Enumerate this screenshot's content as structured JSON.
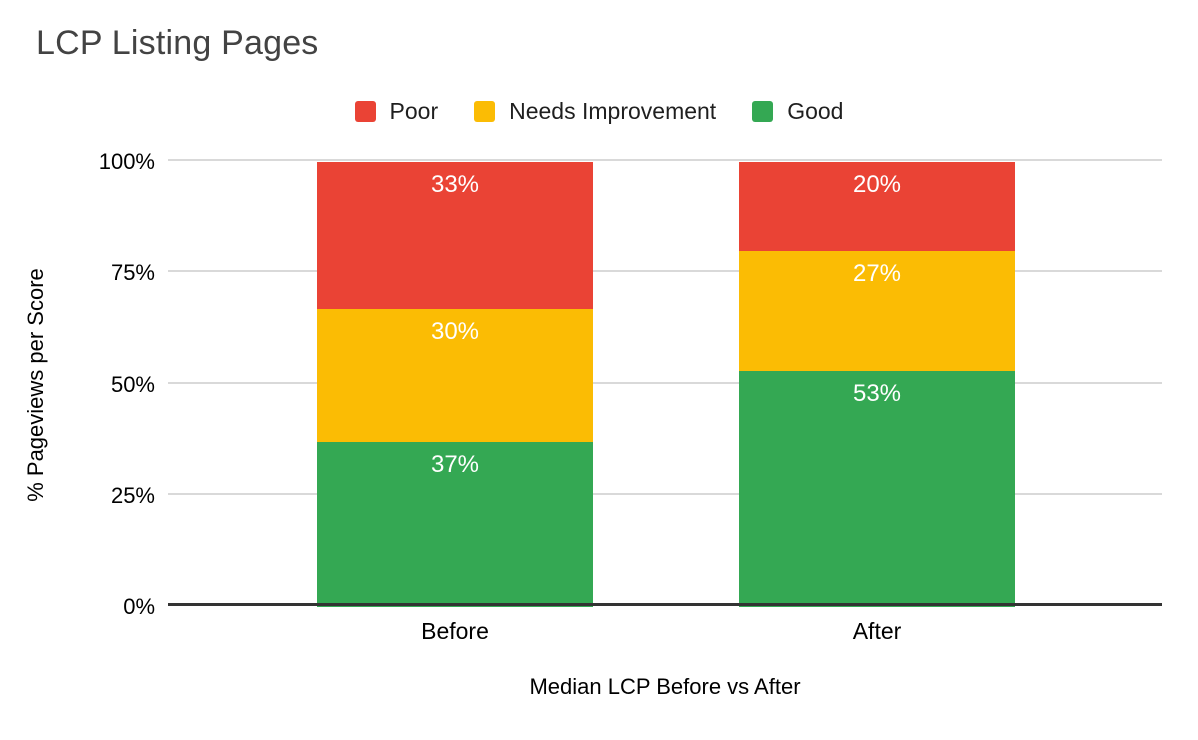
{
  "title": "LCP Listing Pages",
  "chart_data": {
    "type": "bar",
    "stacked": true,
    "percent_stacked": true,
    "title": "LCP Listing Pages",
    "xlabel": "Median LCP Before vs After",
    "ylabel": "% Pageviews per Score",
    "categories": [
      "Before",
      "After"
    ],
    "series": [
      {
        "name": "Poor",
        "color": "#ea4335",
        "values": [
          33,
          20
        ]
      },
      {
        "name": "Needs Improvement",
        "color": "#fbbc04",
        "values": [
          30,
          27
        ]
      },
      {
        "name": "Good",
        "color": "#34a853",
        "values": [
          37,
          53
        ]
      }
    ],
    "bar_labels": [
      [
        "33%",
        "30%",
        "37%"
      ],
      [
        "20%",
        "27%",
        "53%"
      ]
    ],
    "ylim": [
      0,
      100
    ],
    "yticks": [
      "0%",
      "25%",
      "50%",
      "75%",
      "100%"
    ],
    "grid": true,
    "legend_position": "top",
    "legend_entries": [
      "Poor",
      "Needs Improvement",
      "Good"
    ]
  },
  "colors": {
    "poor": "#ea4335",
    "needs_improvement": "#fbbc04",
    "good": "#34a853",
    "title_text": "#434343",
    "axis_text": "#000000",
    "gridline": "#d9d9d9",
    "axis_line": "#333333",
    "bar_label_text": "#ffffff",
    "background": "#ffffff"
  }
}
